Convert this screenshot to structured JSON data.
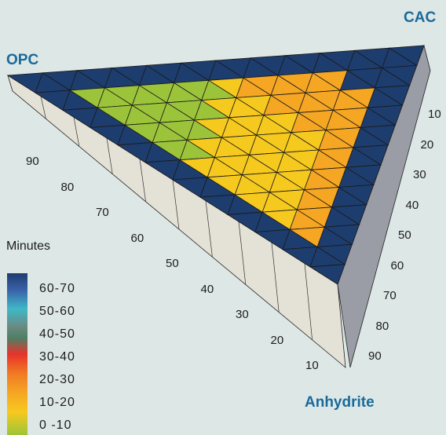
{
  "chart_data": {
    "type": "heatmap",
    "subtype": "ternary-3d-surface",
    "corners": {
      "top_left": "OPC",
      "top_right": "CAC",
      "bottom": "Anhydrite"
    },
    "left_axis_ticks": [
      "90",
      "80",
      "70",
      "60",
      "50",
      "40",
      "30",
      "20",
      "10"
    ],
    "right_axis_ticks": [
      "10",
      "20",
      "30",
      "40",
      "50",
      "60",
      "70",
      "80",
      "90"
    ],
    "legend": {
      "title": "Minutes",
      "entries": [
        {
          "label": "60-70",
          "color": "#1d3d6e"
        },
        {
          "label": "50-60",
          "color": "#3fb8c6"
        },
        {
          "label": "40-50",
          "color": "#6a8a82"
        },
        {
          "label": "30-40",
          "color": "#e8322a"
        },
        {
          "label": "20-30",
          "color": "#f5a623"
        },
        {
          "label": "10-20",
          "color": "#f6c91e"
        },
        {
          "label": "0 -10",
          "color": "#9cc43a"
        }
      ]
    }
  }
}
